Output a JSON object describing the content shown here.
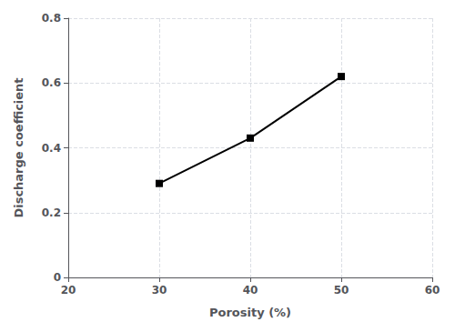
{
  "chart_data": {
    "type": "line",
    "x": [
      30,
      40,
      50
    ],
    "values": [
      0.29,
      0.43,
      0.62
    ],
    "xlim": [
      20,
      60
    ],
    "ylim": [
      0,
      0.8
    ],
    "xticks": [
      20,
      30,
      40,
      50,
      60
    ],
    "yticks": [
      0,
      0.2,
      0.4,
      0.6,
      0.8
    ],
    "xlabel": "Porosity (%)",
    "ylabel": "Discharge coefficient",
    "color": "#000000",
    "marker": "square",
    "line_style": "solid",
    "grid": true
  }
}
